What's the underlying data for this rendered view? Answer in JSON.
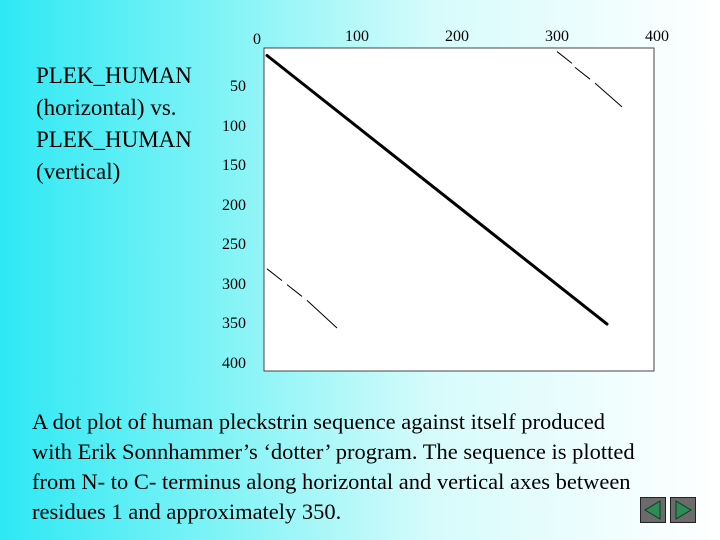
{
  "side_title": {
    "lines": [
      "PLEK_HUMAN",
      "(horizontal) vs.",
      "PLEK_HUMAN",
      "(vertical)"
    ]
  },
  "dot_plot": {
    "x_ticks": [
      "0",
      "100",
      "200",
      "300",
      "400"
    ],
    "y_ticks": [
      "50",
      "100",
      "150",
      "200",
      "250",
      "300",
      "350",
      "400"
    ],
    "x_tick_values": [
      0,
      100,
      200,
      300,
      400
    ],
    "y_tick_values": [
      50,
      100,
      150,
      200,
      250,
      300,
      350,
      400
    ],
    "axis_range": [
      0,
      400
    ],
    "main_diagonal": {
      "from": [
        10,
        10
      ],
      "to": [
        350,
        350
      ]
    },
    "off_diagonal_segments": [
      {
        "from": [
          300,
          5
        ],
        "to": [
          315,
          20
        ]
      },
      {
        "from": [
          318,
          25
        ],
        "to": [
          333,
          40
        ]
      },
      {
        "from": [
          338,
          45
        ],
        "to": [
          365,
          75
        ]
      },
      {
        "from": [
          10,
          280
        ],
        "to": [
          25,
          295
        ]
      },
      {
        "from": [
          30,
          300
        ],
        "to": [
          45,
          315
        ]
      },
      {
        "from": [
          50,
          320
        ],
        "to": [
          80,
          355
        ]
      }
    ],
    "colors": {
      "line": "#000000",
      "frame": "#444444",
      "background": "#ffffff"
    }
  },
  "caption": {
    "lines": [
      "A dot plot of human pleckstrin sequence against itself produced",
      "with Erik Sonnhammer’s ‘dotter’ program. The sequence is plotted",
      "from N- to C- terminus along horizontal and vertical axes between",
      "residues 1 and approximately 350."
    ]
  },
  "nav": {
    "previous_icon": "triangle-left-icon",
    "next_icon": "triangle-right-icon",
    "colors": {
      "left_fill": "#2e8b57",
      "right_fill": "#2e8b57"
    }
  }
}
